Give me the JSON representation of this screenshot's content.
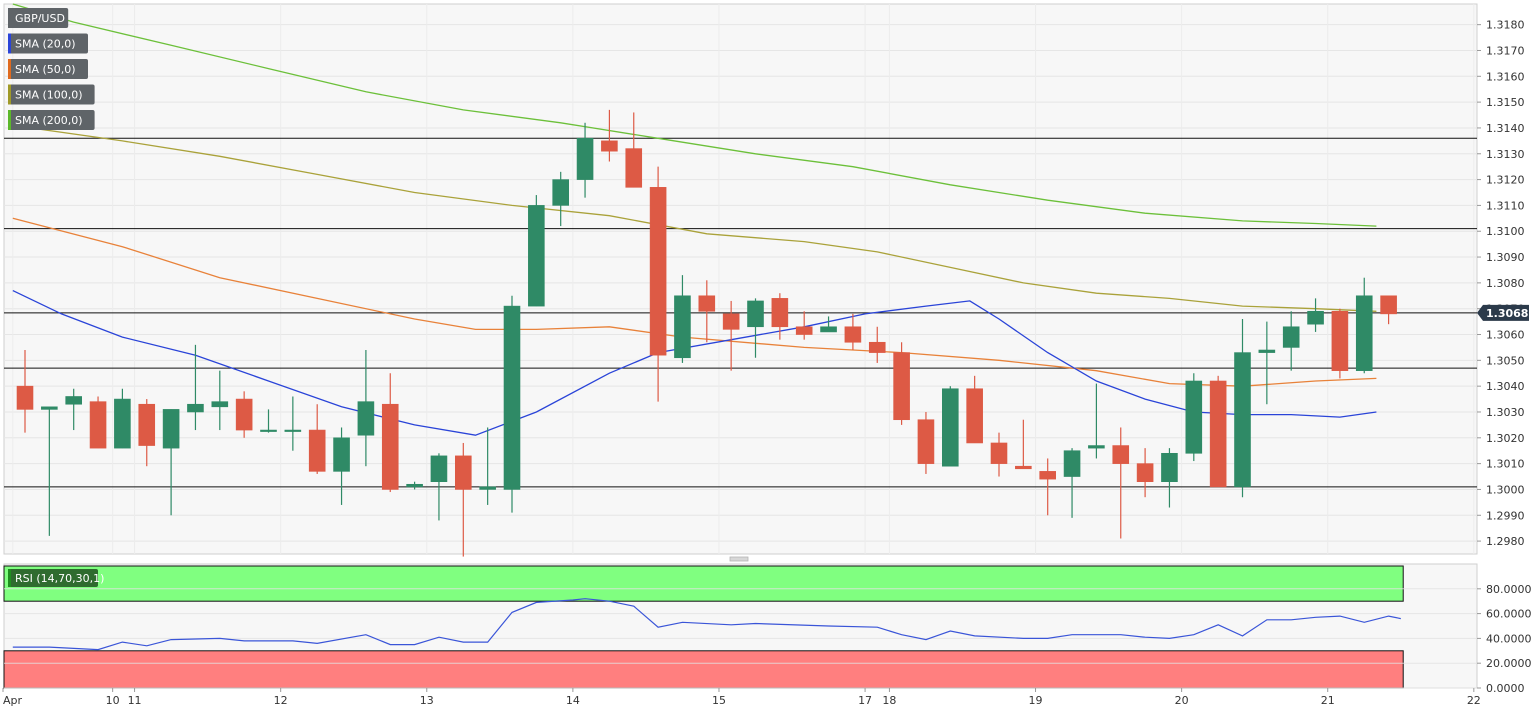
{
  "chart_data": [
    {
      "type": "candlestick",
      "symbol": "GBP/USD",
      "legend": [
        {
          "label": "GBP/USD",
          "color": "#5f6468"
        },
        {
          "label": "SMA (20,0)",
          "color": "#2a44d8"
        },
        {
          "label": "SMA (50,0)",
          "color": "#e06a1e"
        },
        {
          "label": "SMA (100,0)",
          "color": "#a09a28"
        },
        {
          "label": "SMA (200,0)",
          "color": "#5cb82a"
        }
      ],
      "colors": {
        "up": "#2f8a66",
        "down": "#dd5a45",
        "sma20": "#2a44d8",
        "sma50": "#e8823a",
        "sma100": "#aaa23a",
        "sma200": "#6cc03a"
      },
      "ylim": [
        1.2975,
        1.3188
      ],
      "y_ticks": [
        "1.3180",
        "1.3170",
        "1.3160",
        "1.3150",
        "1.3140",
        "1.3130",
        "1.3120",
        "1.3110",
        "1.3100",
        "1.3090",
        "1.3080",
        "1.3070",
        "1.3060",
        "1.3050",
        "1.3040",
        "1.3030",
        "1.3020",
        "1.3010",
        "1.3000",
        "1.2990",
        "1.2980"
      ],
      "last_price": "1.30684",
      "last_price_value": 1.30684,
      "horizontal_levels": [
        1.3136,
        1.3101,
        1.30684,
        1.3047,
        1.3001
      ],
      "x_labels": [
        {
          "label": "Apr",
          "i": -0.5
        },
        {
          "label": "10",
          "i": 3.6
        },
        {
          "label": "11",
          "i": 4.5
        },
        {
          "label": "12",
          "i": 10.5
        },
        {
          "label": "13",
          "i": 16.5
        },
        {
          "label": "14",
          "i": 22.5
        },
        {
          "label": "15",
          "i": 28.5
        },
        {
          "label": "17",
          "i": 34.5
        },
        {
          "label": "18",
          "i": 35.5
        },
        {
          "label": "19",
          "i": 41.5
        },
        {
          "label": "20",
          "i": 47.5
        },
        {
          "label": "21",
          "i": 53.5
        },
        {
          "label": "22",
          "i": 59.5
        }
      ],
      "candles": [
        [
          1.304,
          1.3054,
          1.3022,
          1.3031
        ],
        [
          1.3031,
          1.3032,
          1.2982,
          1.3032
        ],
        [
          1.3033,
          1.3039,
          1.3023,
          1.3036
        ],
        [
          1.3034,
          1.3036,
          1.3016,
          1.3016
        ],
        [
          1.3016,
          1.3039,
          1.3016,
          1.3035
        ],
        [
          1.3033,
          1.3035,
          1.3009,
          1.3017
        ],
        [
          1.3016,
          1.3031,
          1.299,
          1.3031
        ],
        [
          1.303,
          1.3056,
          1.3023,
          1.3033
        ],
        [
          1.3032,
          1.3046,
          1.3023,
          1.3034
        ],
        [
          1.3035,
          1.3038,
          1.302,
          1.3023
        ],
        [
          1.3023,
          1.3031,
          1.3022,
          1.3023
        ],
        [
          1.3023,
          1.3036,
          1.3015,
          1.3023
        ],
        [
          1.3023,
          1.3033,
          1.3006,
          1.3007
        ],
        [
          1.3007,
          1.3024,
          1.2994,
          1.302
        ],
        [
          1.3021,
          1.3054,
          1.3009,
          1.3034
        ],
        [
          1.3033,
          1.3045,
          1.2999,
          1.3
        ],
        [
          1.3001,
          1.3003,
          1.3,
          1.3002
        ],
        [
          1.3003,
          1.3014,
          1.2988,
          1.3013
        ],
        [
          1.3013,
          1.3018,
          1.2974,
          1.3
        ],
        [
          1.3,
          1.3024,
          1.2994,
          1.3001
        ],
        [
          1.3,
          1.3075,
          1.2991,
          1.3071
        ],
        [
          1.3071,
          1.3114,
          1.3071,
          1.311
        ],
        [
          1.311,
          1.3123,
          1.3102,
          1.312
        ],
        [
          1.312,
          1.3142,
          1.3113,
          1.3136
        ],
        [
          1.3135,
          1.3147,
          1.3127,
          1.3131
        ],
        [
          1.3132,
          1.3146,
          1.3117,
          1.3117
        ],
        [
          1.3117,
          1.3125,
          1.3034,
          1.3052
        ],
        [
          1.3051,
          1.3083,
          1.3049,
          1.3075
        ],
        [
          1.3075,
          1.3081,
          1.3057,
          1.3069
        ],
        [
          1.3068,
          1.3073,
          1.3046,
          1.3062
        ],
        [
          1.3063,
          1.3074,
          1.3051,
          1.3073
        ],
        [
          1.3074,
          1.3076,
          1.3058,
          1.3063
        ],
        [
          1.3063,
          1.3069,
          1.3058,
          1.306
        ],
        [
          1.3061,
          1.3067,
          1.3062,
          1.3063
        ],
        [
          1.3063,
          1.3068,
          1.3054,
          1.3057
        ],
        [
          1.3057,
          1.3063,
          1.3049,
          1.3053
        ],
        [
          1.3053,
          1.3057,
          1.3025,
          1.3027
        ],
        [
          1.3027,
          1.303,
          1.3006,
          1.301
        ],
        [
          1.3009,
          1.304,
          1.3009,
          1.3039
        ],
        [
          1.3039,
          1.3044,
          1.3018,
          1.3018
        ],
        [
          1.3018,
          1.3022,
          1.3005,
          1.301
        ],
        [
          1.3009,
          1.3027,
          1.3008,
          1.3008
        ],
        [
          1.3007,
          1.3012,
          1.299,
          1.3004
        ],
        [
          1.3005,
          1.3016,
          1.2989,
          1.3015
        ],
        [
          1.3016,
          1.3041,
          1.3012,
          1.3017
        ],
        [
          1.3017,
          1.3024,
          1.2981,
          1.301
        ],
        [
          1.301,
          1.3016,
          1.2997,
          1.3003
        ],
        [
          1.3003,
          1.3016,
          1.2993,
          1.3014
        ],
        [
          1.3014,
          1.3045,
          1.3011,
          1.3042
        ],
        [
          1.3042,
          1.3044,
          1.3001,
          1.3001
        ],
        [
          1.3001,
          1.3066,
          1.2997,
          1.3053
        ],
        [
          1.3053,
          1.3065,
          1.3033,
          1.3054
        ],
        [
          1.3055,
          1.3069,
          1.3046,
          1.3063
        ],
        [
          1.3064,
          1.3074,
          1.3061,
          1.3069
        ],
        [
          1.3069,
          1.307,
          1.3043,
          1.3046
        ],
        [
          1.3046,
          1.3082,
          1.3045,
          1.3075
        ],
        [
          1.3075,
          1.3075,
          1.3064,
          1.3068
        ]
      ],
      "sma20": [
        [
          -0.5,
          1.3077
        ],
        [
          1.5,
          1.3068
        ],
        [
          4,
          1.3059
        ],
        [
          7,
          1.3052
        ],
        [
          10,
          1.3042
        ],
        [
          13,
          1.3032
        ],
        [
          16,
          1.3025
        ],
        [
          18.5,
          1.3021
        ],
        [
          21,
          1.303
        ],
        [
          24,
          1.3045
        ],
        [
          26,
          1.3053
        ],
        [
          29,
          1.3058
        ],
        [
          32,
          1.3063
        ],
        [
          34.5,
          1.3068
        ],
        [
          37,
          1.3071
        ],
        [
          38.8,
          1.3073
        ],
        [
          40,
          1.3066
        ],
        [
          42,
          1.3053
        ],
        [
          44,
          1.3042
        ],
        [
          46,
          1.3035
        ],
        [
          48,
          1.303
        ],
        [
          50,
          1.3029
        ],
        [
          52,
          1.3029
        ],
        [
          54,
          1.3028
        ],
        [
          55.5,
          1.303
        ]
      ],
      "sma50": [
        [
          -0.5,
          1.3105
        ],
        [
          4,
          1.3094
        ],
        [
          8,
          1.3082
        ],
        [
          12,
          1.3074
        ],
        [
          16,
          1.3066
        ],
        [
          18.5,
          1.3062
        ],
        [
          21,
          1.3062
        ],
        [
          24,
          1.3063
        ],
        [
          27,
          1.3059
        ],
        [
          32,
          1.3055
        ],
        [
          36,
          1.3053
        ],
        [
          40,
          1.305
        ],
        [
          44,
          1.3046
        ],
        [
          47,
          1.3041
        ],
        [
          50,
          1.304
        ],
        [
          53,
          1.3042
        ],
        [
          55.5,
          1.3043
        ]
      ],
      "sma100": [
        [
          -0.5,
          1.3141
        ],
        [
          4,
          1.3135
        ],
        [
          8,
          1.3129
        ],
        [
          12,
          1.3122
        ],
        [
          16,
          1.3115
        ],
        [
          20,
          1.311
        ],
        [
          24,
          1.3106
        ],
        [
          28,
          1.3099
        ],
        [
          32,
          1.3096
        ],
        [
          35,
          1.3092
        ],
        [
          38,
          1.3086
        ],
        [
          41,
          1.308
        ],
        [
          44,
          1.3076
        ],
        [
          47,
          1.3074
        ],
        [
          50,
          1.3071
        ],
        [
          53,
          1.307
        ],
        [
          55.5,
          1.3069
        ]
      ],
      "sma200": [
        [
          -0.5,
          1.3188
        ],
        [
          2,
          1.3181
        ],
        [
          6,
          1.3172
        ],
        [
          10,
          1.3163
        ],
        [
          14,
          1.3154
        ],
        [
          18,
          1.3147
        ],
        [
          22,
          1.3142
        ],
        [
          26,
          1.3136
        ],
        [
          30,
          1.313
        ],
        [
          34,
          1.3125
        ],
        [
          38,
          1.3118
        ],
        [
          42,
          1.3112
        ],
        [
          46,
          1.3107
        ],
        [
          50,
          1.3104
        ],
        [
          53,
          1.3103
        ],
        [
          55.5,
          1.3102
        ]
      ]
    },
    {
      "type": "line",
      "label": "RSI (14,70,30,1)",
      "ylim": [
        0,
        100
      ],
      "y_ticks": [
        "80.0000",
        "60.0000",
        "40.0000",
        "20.0000",
        "0.0000"
      ],
      "overbought": 70,
      "oversold": 30,
      "colors": {
        "line": "#3a55d8",
        "overbought_fill": "#80ff80",
        "oversold_fill": "#ff7f7f"
      },
      "values": [
        [
          -0.5,
          33
        ],
        [
          1,
          33
        ],
        [
          3,
          31
        ],
        [
          4,
          37
        ],
        [
          5,
          34
        ],
        [
          6,
          39
        ],
        [
          8,
          40
        ],
        [
          9,
          38
        ],
        [
          11,
          38
        ],
        [
          12,
          36
        ],
        [
          14,
          43
        ],
        [
          15,
          35
        ],
        [
          16,
          35
        ],
        [
          17,
          41
        ],
        [
          18,
          37
        ],
        [
          19,
          37
        ],
        [
          20,
          61
        ],
        [
          21,
          69
        ],
        [
          22.5,
          71
        ],
        [
          23,
          72
        ],
        [
          24,
          70
        ],
        [
          25,
          66
        ],
        [
          26,
          49
        ],
        [
          27,
          53
        ],
        [
          29,
          51
        ],
        [
          30,
          52
        ],
        [
          33,
          50
        ],
        [
          35,
          49
        ],
        [
          36,
          43
        ],
        [
          37,
          39
        ],
        [
          38,
          46
        ],
        [
          39,
          42
        ],
        [
          41,
          40
        ],
        [
          42,
          40
        ],
        [
          43,
          43
        ],
        [
          45,
          43
        ],
        [
          46,
          41
        ],
        [
          47,
          40
        ],
        [
          48,
          43
        ],
        [
          49,
          51
        ],
        [
          50,
          42
        ],
        [
          51,
          55
        ],
        [
          52,
          55
        ],
        [
          53,
          57
        ],
        [
          54,
          58
        ],
        [
          55,
          53
        ],
        [
          56,
          58
        ],
        [
          56.5,
          56
        ]
      ]
    }
  ]
}
